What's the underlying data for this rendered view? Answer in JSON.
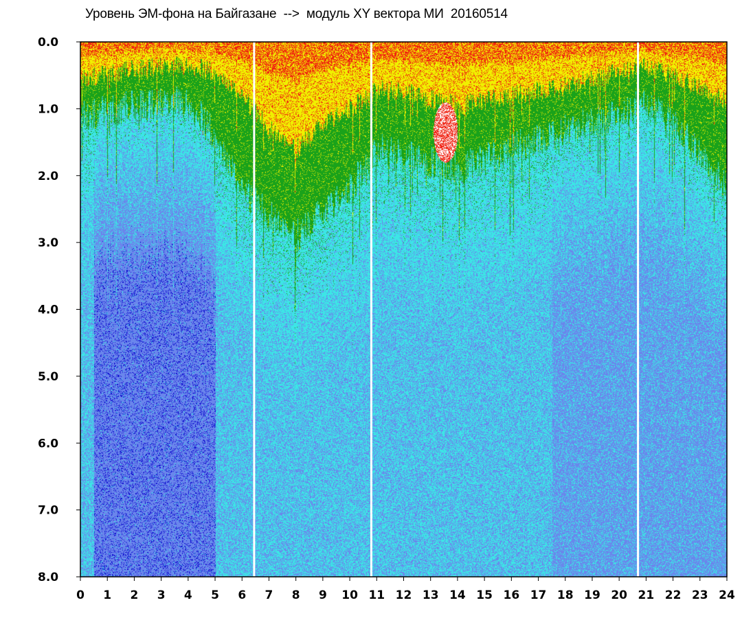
{
  "chart_data": {
    "type": "heatmap",
    "title": "Уровень ЭМ-фона на Байгазане  -->  модуль XY вектора МИ  20160514",
    "xlabel": "",
    "ylabel": "",
    "xlim": [
      0,
      24
    ],
    "ylim": [
      0,
      8
    ],
    "y_inverted": true,
    "x_ticks": [
      "0",
      "1",
      "2",
      "3",
      "4",
      "5",
      "6",
      "7",
      "8",
      "9",
      "10",
      "11",
      "12",
      "13",
      "14",
      "15",
      "16",
      "17",
      "18",
      "19",
      "20",
      "21",
      "22",
      "23",
      "24"
    ],
    "y_ticks": [
      "0.0",
      "1.0",
      "2.0",
      "3.0",
      "4.0",
      "5.0",
      "6.0",
      "7.0",
      "8.0"
    ],
    "grid": false,
    "colors": {
      "very_low": "#1010d0",
      "low": "#6a86ec",
      "medium": "#3ce6e6",
      "elevated": "#1aa21a",
      "high": "#f0f000",
      "very_high": "#f02010",
      "gap": "#ffffff",
      "frame": "#000000"
    },
    "gaps_hours": [
      6.45,
      10.8,
      20.7
    ],
    "burst": {
      "hour_range": [
        13.1,
        14.0
      ],
      "freq_range": [
        0.9,
        1.8
      ]
    },
    "upper_band_depth": [
      {
        "hour": 0,
        "yellow": 0.55,
        "green": 1.1
      },
      {
        "hour": 2,
        "yellow": 0.4,
        "green": 0.95
      },
      {
        "hour": 4,
        "yellow": 0.35,
        "green": 0.9
      },
      {
        "hour": 5,
        "yellow": 0.45,
        "green": 1.4
      },
      {
        "hour": 6,
        "yellow": 0.8,
        "green": 2.2
      },
      {
        "hour": 7,
        "yellow": 1.3,
        "green": 2.6
      },
      {
        "hour": 8,
        "yellow": 1.6,
        "green": 2.9
      },
      {
        "hour": 9,
        "yellow": 1.2,
        "green": 2.5
      },
      {
        "hour": 10,
        "yellow": 1.0,
        "green": 2.2
      },
      {
        "hour": 11,
        "yellow": 0.7,
        "green": 1.6
      },
      {
        "hour": 12,
        "yellow": 0.75,
        "green": 1.7
      },
      {
        "hour": 14,
        "yellow": 0.95,
        "green": 1.9
      },
      {
        "hour": 16,
        "yellow": 0.8,
        "green": 1.6
      },
      {
        "hour": 18,
        "yellow": 0.65,
        "green": 1.3
      },
      {
        "hour": 20,
        "yellow": 0.45,
        "green": 1.1
      },
      {
        "hour": 21,
        "yellow": 0.35,
        "green": 0.9
      },
      {
        "hour": 22,
        "yellow": 0.5,
        "green": 1.2
      },
      {
        "hour": 24,
        "yellow": 0.9,
        "green": 2.2
      }
    ],
    "low_field_regions": [
      {
        "hours": [
          0.5,
          5.0
        ],
        "freq": [
          2.5,
          8.0
        ],
        "level": "very_low"
      },
      {
        "hours": [
          17.5,
          24.0
        ],
        "freq": [
          3.0,
          8.0
        ],
        "level": "low"
      }
    ]
  }
}
